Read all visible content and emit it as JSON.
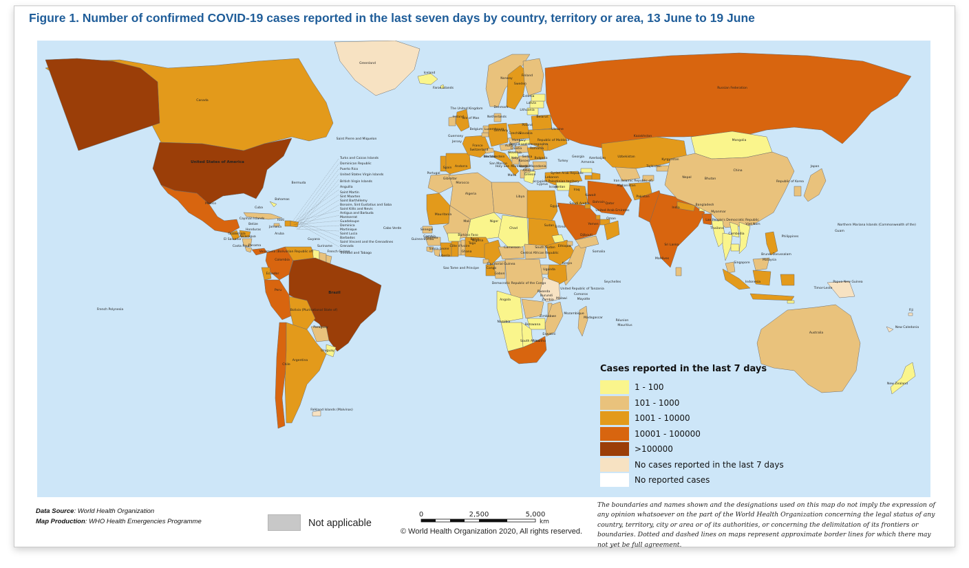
{
  "title": "Figure 1. Number of confirmed COVID-19 cases reported in the last seven days by country, territory or area, 13 June to 19 June",
  "legend": {
    "title": "Cases reported in the last 7 days",
    "items": [
      {
        "label": "1 - 100",
        "color": "#faf58c"
      },
      {
        "label": "101 - 1000",
        "color": "#e9c27c"
      },
      {
        "label": "1001 - 10000",
        "color": "#e39a1b"
      },
      {
        "label": "10001 - 100000",
        "color": "#d8650f"
      },
      {
        "label": ">100000",
        "color": "#9b3e08"
      },
      {
        "label": "No cases reported in the last 7 days",
        "color": "#f7e2c2"
      },
      {
        "label": "No reported cases",
        "color": "#ffffff"
      }
    ]
  },
  "not_applicable": {
    "label": "Not applicable",
    "color": "#c8c8c8"
  },
  "scale_bar": {
    "ticks": [
      "0",
      "2,500",
      "5,000"
    ],
    "unit": "km"
  },
  "data_source": {
    "label": "Data Source",
    "value": "World Health Organization"
  },
  "map_production": {
    "label": "Map Production",
    "value": "WHO Health Emergencies Programme"
  },
  "copyright": "© World Health Organization  2020,  All rights reserved.",
  "disclaimer": "The boundaries and names shown and the designations used on this map do not imply the expression of any opinion whatsoever on the part of the World Health Organization concerning the legal status of any country, territory, city or area or of its authorities, or concerning the delimitation of its frontiers or boundaries. Dotted and dashed lines on maps represent approximate border lines for which there may not yet be full agreement.",
  "colors": {
    "ocean": "#cde6f8",
    "title": "#1f5d99"
  },
  "map_labels": [
    {
      "name": "Greenland",
      "category": "No cases reported in the last 7 days"
    },
    {
      "name": "Iceland",
      "category": "1 - 100"
    },
    {
      "name": "Canada",
      "category": "1001 - 10000"
    },
    {
      "name": "United States of America",
      "category": ">100000"
    },
    {
      "name": "Mexico",
      "category": "10001 - 100000"
    },
    {
      "name": "Brazil",
      "category": ">100000"
    },
    {
      "name": "Peru",
      "category": "10001 - 100000"
    },
    {
      "name": "Chile",
      "category": "10001 - 100000"
    },
    {
      "name": "Argentina",
      "category": "1001 - 10000"
    },
    {
      "name": "Colombia",
      "category": "10001 - 100000"
    },
    {
      "name": "Ecuador",
      "category": "1001 - 10000"
    },
    {
      "name": "Bolivia (Plurinational State of)",
      "category": "1001 - 10000"
    },
    {
      "name": "Venezuela (Bolivarian Republic of)",
      "category": "1001 - 10000"
    },
    {
      "name": "Paraguay",
      "category": "101 - 1000"
    },
    {
      "name": "Uruguay",
      "category": "1 - 100"
    },
    {
      "name": "Russian Federation",
      "category": "10001 - 100000"
    },
    {
      "name": "Kazakhstan",
      "category": "1001 - 10000"
    },
    {
      "name": "Mongolia",
      "category": "1 - 100"
    },
    {
      "name": "China",
      "category": "101 - 1000"
    },
    {
      "name": "India",
      "category": "10001 - 100000"
    },
    {
      "name": "Pakistan",
      "category": "10001 - 100000"
    },
    {
      "name": "Iran (Islamic Republic of)",
      "category": "10001 - 100000"
    },
    {
      "name": "Saudi Arabia",
      "category": "10001 - 100000"
    },
    {
      "name": "Egypt",
      "category": "1001 - 10000"
    },
    {
      "name": "South Africa",
      "category": "10001 - 100000"
    },
    {
      "name": "Australia",
      "category": "101 - 1000"
    },
    {
      "name": "New Zealand",
      "category": "1 - 100"
    },
    {
      "name": "Indonesia",
      "category": "1001 - 10000"
    },
    {
      "name": "Philippines",
      "category": "1001 - 10000"
    },
    {
      "name": "Japan",
      "category": "101 - 1000"
    },
    {
      "name": "Algeria",
      "category": "101 - 1000"
    },
    {
      "name": "Libya",
      "category": "101 - 1000"
    },
    {
      "name": "Mali",
      "category": "101 - 1000"
    },
    {
      "name": "Niger",
      "category": "1 - 100"
    },
    {
      "name": "Chad",
      "category": "1 - 100"
    },
    {
      "name": "Sudan",
      "category": "1001 - 10000"
    },
    {
      "name": "Nigeria",
      "category": "1001 - 10000"
    },
    {
      "name": "Democratic Republic of the Congo",
      "category": "101 - 1000"
    },
    {
      "name": "Angola",
      "category": "1 - 100"
    },
    {
      "name": "Namibia",
      "category": "1 - 100"
    },
    {
      "name": "Madagascar",
      "category": "101 - 1000"
    },
    {
      "name": "Morocco",
      "category": "101 - 1000"
    },
    {
      "name": "Turkey",
      "category": "1001 - 10000"
    },
    {
      "name": "Afghanistan",
      "category": "1001 - 10000"
    },
    {
      "name": "Bangladesh",
      "category": "10001 - 100000"
    },
    {
      "name": "Papua New Guinea",
      "category": "No cases reported in the last 7 days"
    },
    {
      "name": "Republic of Korea",
      "category": "101 - 1000"
    },
    {
      "name": "French Polynesia",
      "category": "No cases reported in the last 7 days"
    },
    {
      "name": "Falkland Islands (Malvinas)",
      "category": "No cases reported in the last 7 days"
    },
    {
      "name": "Sri Lanka",
      "category": "101 - 1000"
    },
    {
      "name": "Maldives",
      "category": "101 - 1000"
    },
    {
      "name": "Fiji",
      "category": "No cases reported in the last 7 days"
    },
    {
      "name": "New Caledonia",
      "category": "No cases reported in the last 7 days"
    },
    {
      "name": "Northern Mariana Islands (Commonwealth of the)",
      "category": "1 - 100"
    },
    {
      "name": "Guam",
      "category": "1 - 100"
    },
    {
      "name": "Bermuda",
      "category": "1 - 100"
    },
    {
      "name": "Bahamas",
      "category": "1 - 100"
    },
    {
      "name": "Cuba",
      "category": "101 - 1000"
    },
    {
      "name": "Haiti",
      "category": "1001 - 10000"
    },
    {
      "name": "Jamaica",
      "category": "101 - 1000"
    },
    {
      "name": "Panama",
      "category": "10001 - 100000"
    },
    {
      "name": "Costa Rica",
      "category": "101 - 1000"
    },
    {
      "name": "Nicaragua",
      "category": "101 - 1000"
    },
    {
      "name": "Honduras",
      "category": "1001 - 10000"
    },
    {
      "name": "Guatemala",
      "category": "1001 - 10000"
    },
    {
      "name": "El Salvador",
      "category": "101 - 1000"
    },
    {
      "name": "Belize",
      "category": "1 - 100"
    },
    {
      "name": "Aruba",
      "category": "1 - 100"
    },
    {
      "name": "Cabo Verde",
      "category": "101 - 1000"
    },
    {
      "name": "Sao Tome and Principe",
      "category": "101 - 1000"
    },
    {
      "name": "Seychelles",
      "category": "1 - 100"
    },
    {
      "name": "Mauritius",
      "category": "1 - 100"
    },
    {
      "name": "Réunion",
      "category": "1 - 100"
    },
    {
      "name": "Faroe Islands",
      "category": "1 - 100"
    },
    {
      "name": "Saint Pierre and Miquelon",
      "category": "1 - 100"
    },
    {
      "name": "Gibraltar",
      "category": "1 - 100"
    },
    {
      "name": "Malta",
      "category": "1 - 100"
    },
    {
      "name": "Cyprus",
      "category": "1 - 100"
    },
    {
      "name": "Timor-Leste",
      "category": "1 - 100"
    },
    {
      "name": "Singapore",
      "category": "1001 - 10000"
    },
    {
      "name": "Malaysia",
      "category": "101 - 1000"
    },
    {
      "name": "Brunei Darussalam",
      "category": "1 - 100"
    },
    {
      "name": "Kenya",
      "category": "1001 - 10000"
    },
    {
      "name": "Somalia",
      "category": "101 - 1000"
    },
    {
      "name": "Ethiopia",
      "category": "1001 - 10000"
    },
    {
      "name": "Djibouti",
      "category": "101 - 1000"
    },
    {
      "name": "Uganda",
      "category": "101 - 1000"
    },
    {
      "name": "United Republic of Tanzania",
      "category": "No cases reported in the last 7 days"
    },
    {
      "name": "Zambia",
      "category": "101 - 1000"
    },
    {
      "name": "Malawi",
      "category": "101 - 1000"
    },
    {
      "name": "Mozambique",
      "category": "101 - 1000"
    },
    {
      "name": "Zimbabwe",
      "category": "1 - 100"
    },
    {
      "name": "Botswana",
      "category": "1 - 100"
    },
    {
      "name": "Eswatini",
      "category": "101 - 1000"
    },
    {
      "name": "Lesotho",
      "category": "1 - 100"
    },
    {
      "name": "Comoros",
      "category": "1 - 100"
    },
    {
      "name": "Mayotte",
      "category": "101 - 1000"
    },
    {
      "name": "Burundi",
      "category": "1 - 100"
    },
    {
      "name": "Rwanda",
      "category": "101 - 1000"
    },
    {
      "name": "South Sudan",
      "category": "101 - 1000"
    },
    {
      "name": "Central African Republic",
      "category": "101 - 1000"
    },
    {
      "name": "Cameroon",
      "category": "1001 - 10000"
    },
    {
      "name": "Equatorial Guinea",
      "category": "101 - 1000"
    },
    {
      "name": "Gabon",
      "category": "1001 - 10000"
    },
    {
      "name": "Congo",
      "category": "101 - 1000"
    },
    {
      "name": "Ghana",
      "category": "1001 - 10000"
    },
    {
      "name": "Côte d'Ivoire",
      "category": "1001 - 10000"
    },
    {
      "name": "Liberia",
      "category": "101 - 1000"
    },
    {
      "name": "Sierra Leone",
      "category": "101 - 1000"
    },
    {
      "name": "Guinea",
      "category": "101 - 1000"
    },
    {
      "name": "Guinea-Bissau",
      "category": "101 - 1000"
    },
    {
      "name": "Senegal",
      "category": "101 - 1000"
    },
    {
      "name": "Gambia",
      "category": "1 - 100"
    },
    {
      "name": "Mauritania",
      "category": "1001 - 10000"
    },
    {
      "name": "Burkina Faso",
      "category": "1 - 100"
    },
    {
      "name": "Benin",
      "category": "101 - 1000"
    },
    {
      "name": "Togo",
      "category": "101 - 1000"
    },
    {
      "name": "Eritrea",
      "category": "1 - 100"
    },
    {
      "name": "Yemen",
      "category": "101 - 1000"
    },
    {
      "name": "Oman",
      "category": "1001 - 10000"
    },
    {
      "name": "United Arab Emirates",
      "category": "1001 - 10000"
    },
    {
      "name": "Qatar",
      "category": "1001 - 10000"
    },
    {
      "name": "Bahrain",
      "category": "1001 - 10000"
    },
    {
      "name": "Kuwait",
      "category": "1001 - 10000"
    },
    {
      "name": "Iraq",
      "category": "1001 - 10000"
    },
    {
      "name": "Syrian Arab Republic",
      "category": "1 - 100"
    },
    {
      "name": "Lebanon",
      "category": "1 - 100"
    },
    {
      "name": "Jordan",
      "category": "1 - 100"
    },
    {
      "name": "Israel",
      "category": "101 - 1000"
    },
    {
      "name": "occupied Palestinian territory",
      "category": "101 - 1000"
    },
    {
      "name": "Georgia",
      "category": "1 - 100"
    },
    {
      "name": "Armenia",
      "category": "1001 - 10000"
    },
    {
      "name": "Azerbaijan",
      "category": "1001 - 10000"
    },
    {
      "name": "Uzbekistan",
      "category": "101 - 1000"
    },
    {
      "name": "Kyrgyzstan",
      "category": "101 - 1000"
    },
    {
      "name": "Tajikistan",
      "category": "101 - 1000"
    },
    {
      "name": "Nepal",
      "category": "1001 - 10000"
    },
    {
      "name": "Bhutan",
      "category": "1 - 100"
    },
    {
      "name": "Myanmar",
      "category": "1 - 100"
    },
    {
      "name": "Thailand",
      "category": "1 - 100"
    },
    {
      "name": "Lao People's Democratic Republic",
      "category": "1 - 100"
    },
    {
      "name": "Viet Nam",
      "category": "1 - 100"
    },
    {
      "name": "Cambodia",
      "category": "1 - 100"
    },
    {
      "name": "Norway",
      "category": "101 - 1000"
    },
    {
      "name": "Sweden",
      "category": "1001 - 10000"
    },
    {
      "name": "Finland",
      "category": "101 - 1000"
    },
    {
      "name": "Estonia",
      "category": "1 - 100"
    },
    {
      "name": "Latvia",
      "category": "1 - 100"
    },
    {
      "name": "Lithuania",
      "category": "1 - 100"
    },
    {
      "name": "Belarus",
      "category": "1001 - 10000"
    },
    {
      "name": "Ukraine",
      "category": "1001 - 10000"
    },
    {
      "name": "Republic of Moldova",
      "category": "1001 - 10000"
    },
    {
      "name": "Poland",
      "category": "1001 - 10000"
    },
    {
      "name": "Germany",
      "category": "1001 - 10000"
    },
    {
      "name": "Denmark",
      "category": "101 - 1000"
    },
    {
      "name": "The United Kingdom",
      "category": "1001 - 10000"
    },
    {
      "name": "Ireland",
      "category": "101 - 1000"
    },
    {
      "name": "Isle of Man",
      "category": "1 - 100"
    },
    {
      "name": "Netherlands",
      "category": "101 - 1000"
    },
    {
      "name": "Belgium",
      "category": "101 - 1000"
    },
    {
      "name": "Luxembourg",
      "category": "1 - 100"
    },
    {
      "name": "France",
      "category": "1001 - 10000"
    },
    {
      "name": "Switzerland",
      "category": "101 - 1000"
    },
    {
      "name": "Liechtenstein",
      "category": "1 - 100"
    },
    {
      "name": "Austria",
      "category": "101 - 1000"
    },
    {
      "name": "Czechia",
      "category": "101 - 1000"
    },
    {
      "name": "Slovakia",
      "category": "1 - 100"
    },
    {
      "name": "Hungary",
      "category": "101 - 1000"
    },
    {
      "name": "Slovenia",
      "category": "1 - 100"
    },
    {
      "name": "Croatia",
      "category": "1 - 100"
    },
    {
      "name": "Bosnia and Herzegovina",
      "category": "101 - 1000"
    },
    {
      "name": "Serbia",
      "category": "101 - 1000"
    },
    {
      "name": "Montenegro",
      "category": "1 - 100"
    },
    {
      "name": "Albania",
      "category": "101 - 1000"
    },
    {
      "name": "North Macedonia",
      "category": "101 - 1000"
    },
    {
      "name": "Kosovo",
      "category": "101 - 1000"
    },
    {
      "name": "Bulgaria",
      "category": "101 - 1000"
    },
    {
      "name": "Romania",
      "category": "1001 - 10000"
    },
    {
      "name": "Greece",
      "category": "1 - 100"
    },
    {
      "name": "Italy",
      "category": "1001 - 10000"
    },
    {
      "name": "San Marino",
      "category": "1 - 100"
    },
    {
      "name": "Monaco",
      "category": "1 - 100"
    },
    {
      "name": "Holy See",
      "category": "1 - 100"
    },
    {
      "name": "Spain",
      "category": "1001 - 10000"
    },
    {
      "name": "Portugal",
      "category": "1001 - 10000"
    },
    {
      "name": "Andorra",
      "category": "1 - 100"
    },
    {
      "name": "Guernsey",
      "category": "1 - 100"
    },
    {
      "name": "Jersey",
      "category": "1 - 100"
    },
    {
      "name": "Guyana",
      "category": "1 - 100"
    },
    {
      "name": "Suriname",
      "category": "101 - 1000"
    },
    {
      "name": "French Guiana",
      "category": "101 - 1000"
    },
    {
      "name": "Turks and Caicos Islands",
      "category": "1 - 100"
    },
    {
      "name": "Dominican Republic",
      "category": "1001 - 10000"
    },
    {
      "name": "Puerto Rico",
      "category": "101 - 1000"
    },
    {
      "name": "United States Virgin Islands",
      "category": "1 - 100"
    },
    {
      "name": "British Virgin Islands",
      "category": "1 - 100"
    },
    {
      "name": "Anguilla",
      "category": "1 - 100"
    },
    {
      "name": "Saint Martin",
      "category": "1 - 100"
    },
    {
      "name": "Sint Maarten",
      "category": "1 - 100"
    },
    {
      "name": "Saint Barthélemy",
      "category": "1 - 100"
    },
    {
      "name": "Bonaire, Sint Eustatius and Saba",
      "category": "1 - 100"
    },
    {
      "name": "Saint Kitts and Nevis",
      "category": "1 - 100"
    },
    {
      "name": "Antigua and Barbuda",
      "category": "1 - 100"
    },
    {
      "name": "Montserrat",
      "category": "1 - 100"
    },
    {
      "name": "Guadeloupe",
      "category": "1 - 100"
    },
    {
      "name": "Dominica",
      "category": "1 - 100"
    },
    {
      "name": "Martinique",
      "category": "1 - 100"
    },
    {
      "name": "Saint Lucia",
      "category": "1 - 100"
    },
    {
      "name": "Barbados",
      "category": "1 - 100"
    },
    {
      "name": "Saint Vincent and the Grenadines",
      "category": "1 - 100"
    },
    {
      "name": "Grenada",
      "category": "1 - 100"
    },
    {
      "name": "Trinidad and Tobago",
      "category": "1 - 100"
    },
    {
      "name": "Cayman Islands",
      "category": "1 - 100"
    }
  ]
}
